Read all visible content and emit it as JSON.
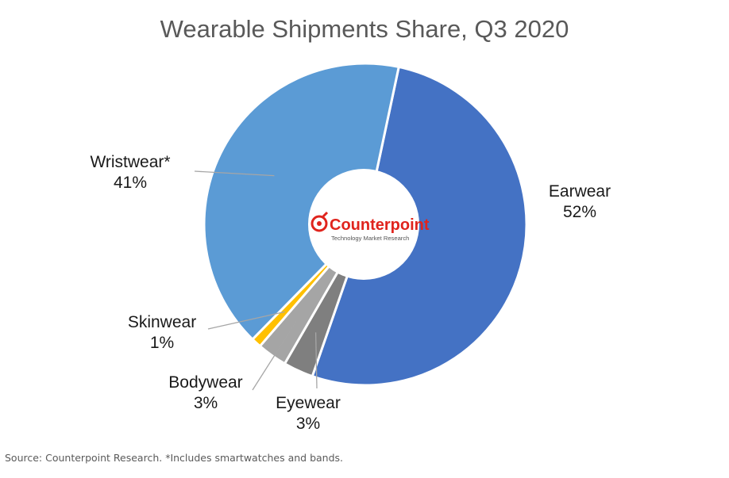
{
  "chart_data": {
    "type": "pie",
    "title": "Wearable Shipments Share, Q3 2020",
    "categories": [
      "Earwear",
      "Eyewear",
      "Bodywear",
      "Skinwear",
      "Wristwear*"
    ],
    "values": [
      52,
      3,
      3,
      1,
      41
    ],
    "value_labels": [
      "52%",
      "3%",
      "3%",
      "1%",
      "41%"
    ],
    "colors": [
      "#4472c4",
      "#7f7f7f",
      "#a5a5a5",
      "#ffc000",
      "#5b9bd5"
    ],
    "legend": "none",
    "donut": true
  },
  "center_logo": {
    "brand": "Counterpoint",
    "tagline": "Technology Market Research",
    "color": "#e0241d"
  },
  "source_note": "Source: Counterpoint Research. *Includes smartwatches and bands."
}
